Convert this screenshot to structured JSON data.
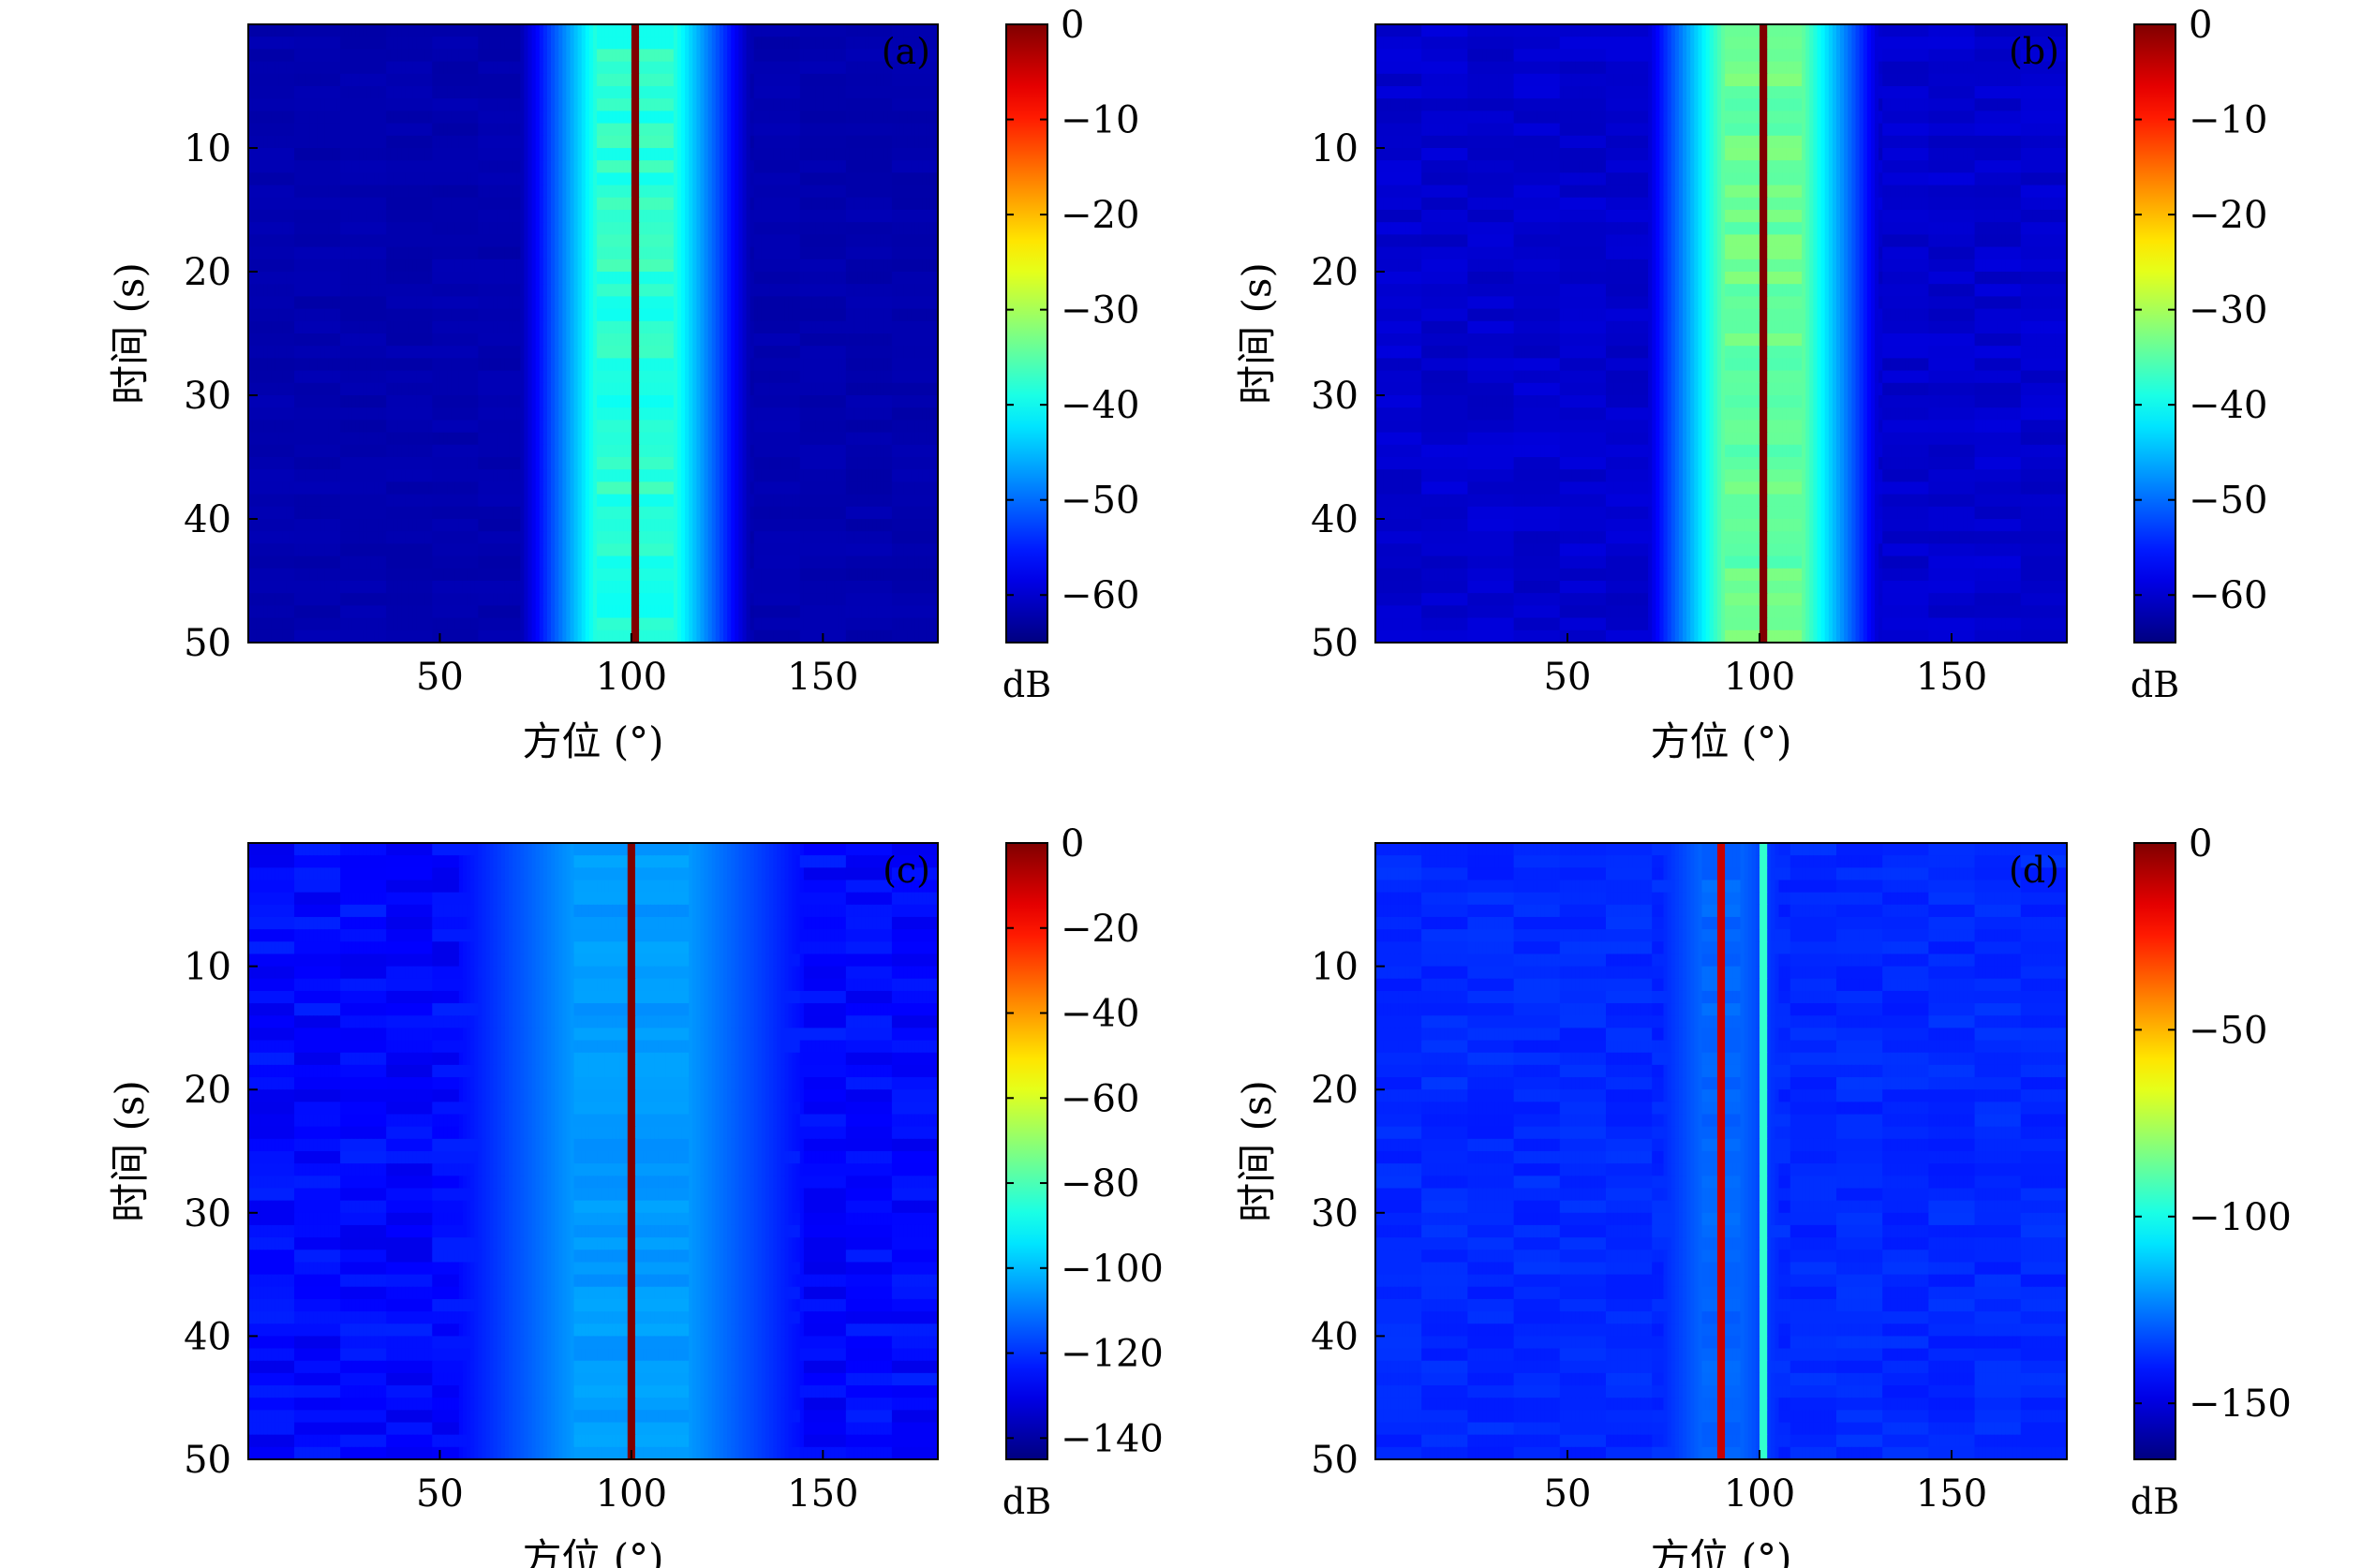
{
  "chart_data": [
    {
      "type": "heatmap",
      "panel_label": "(a)",
      "xlabel": "方位 (°)",
      "ylabel": "时间 (s)",
      "xlim": [
        0,
        180
      ],
      "ylim": [
        50,
        0
      ],
      "xticks": [
        50,
        100,
        150
      ],
      "yticks": [
        10,
        20,
        30,
        40,
        50
      ],
      "colorbar": {
        "label": "dB",
        "range": [
          -65,
          0
        ],
        "ticks": [
          0,
          -10,
          -20,
          -30,
          -40,
          -50,
          -60
        ]
      },
      "peaks": [
        {
          "azimuth": 101,
          "level": 0
        }
      ],
      "main_lobe_level": -38,
      "main_lobe_width": 20,
      "background_level": -62,
      "row_variation": 1
    },
    {
      "type": "heatmap",
      "panel_label": "(b)",
      "xlabel": "方位 (°)",
      "ylabel": "时间 (s)",
      "xlim": [
        0,
        180
      ],
      "ylim": [
        50,
        0
      ],
      "xticks": [
        50,
        100,
        150
      ],
      "yticks": [
        10,
        20,
        30,
        40,
        50
      ],
      "colorbar": {
        "label": "dB",
        "range": [
          -65,
          0
        ],
        "ticks": [
          0,
          -10,
          -20,
          -30,
          -40,
          -50,
          -60
        ]
      },
      "peaks": [
        {
          "azimuth": 101,
          "level": 0
        }
      ],
      "main_lobe_level": -34,
      "main_lobe_width": 20,
      "background_level": -60,
      "row_variation": 2
    },
    {
      "type": "heatmap",
      "panel_label": "(c)",
      "xlabel": "方位 (°)",
      "ylabel": "时间 (s)",
      "xlim": [
        0,
        180
      ],
      "ylim": [
        50,
        0
      ],
      "xticks": [
        50,
        100,
        150
      ],
      "yticks": [
        10,
        20,
        30,
        40,
        50
      ],
      "colorbar": {
        "label": "dB",
        "range": [
          -145,
          0
        ],
        "ticks": [
          0,
          -20,
          -40,
          -60,
          -80,
          -100,
          -120,
          -140
        ]
      },
      "peaks": [
        {
          "azimuth": 100,
          "level": 0
        }
      ],
      "main_lobe_level": -105,
      "main_lobe_width": 30,
      "background_level": -126,
      "row_variation": 8
    },
    {
      "type": "heatmap",
      "panel_label": "(d)",
      "xlabel": "方位 (°)",
      "ylabel": "时间 (s)",
      "xlim": [
        0,
        180
      ],
      "ylim": [
        50,
        0
      ],
      "xticks": [
        50,
        100,
        150
      ],
      "yticks": [
        10,
        20,
        30,
        40,
        50
      ],
      "colorbar": {
        "label": "dB",
        "range": [
          -165,
          0
        ],
        "ticks": [
          0,
          -50,
          -100,
          -150
        ]
      },
      "peaks": [
        {
          "azimuth": 90,
          "level": -12
        },
        {
          "azimuth": 101,
          "level": -95
        }
      ],
      "main_lobe_level": -128,
      "main_lobe_width": 10,
      "background_level": -138,
      "row_variation": 5
    }
  ]
}
